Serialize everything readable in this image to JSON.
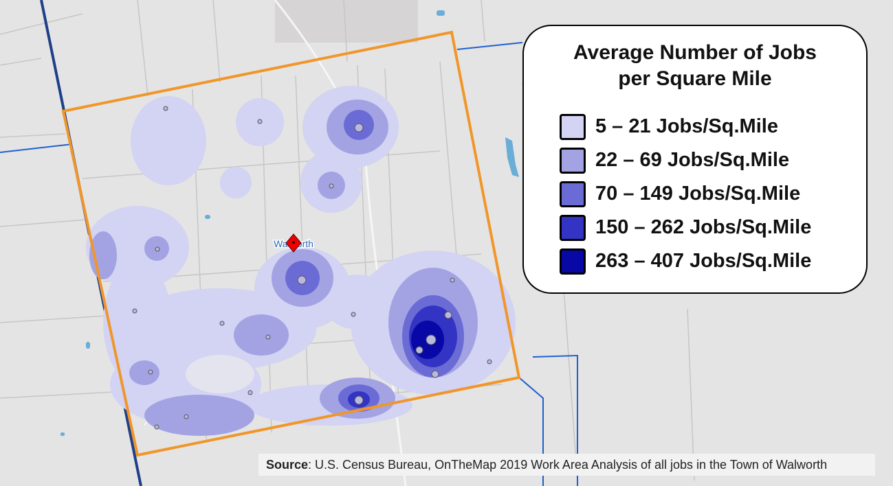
{
  "map_title_lines": [
    "Average Number of Jobs",
    "per Square Mile"
  ],
  "legend": [
    {
      "label": "5 – 21 Jobs/Sq.Mile",
      "color": "#d3d3f3"
    },
    {
      "label": "22 – 69 Jobs/Sq.Mile",
      "color": "#a3a3e3"
    },
    {
      "label": "70 – 149 Jobs/Sq.Mile",
      "color": "#6b6bd6"
    },
    {
      "label": "150 – 262 Jobs/Sq.Mile",
      "color": "#3333c4"
    },
    {
      "label": "263 – 407 Jobs/Sq.Mile",
      "color": "#0808a6"
    }
  ],
  "place_label": "Walworth",
  "source": {
    "label": "Source",
    "text": ": U.S. Census Bureau, OnTheMap 2019 Work Area Analysis of all jobs in the Town of Walworth"
  }
}
